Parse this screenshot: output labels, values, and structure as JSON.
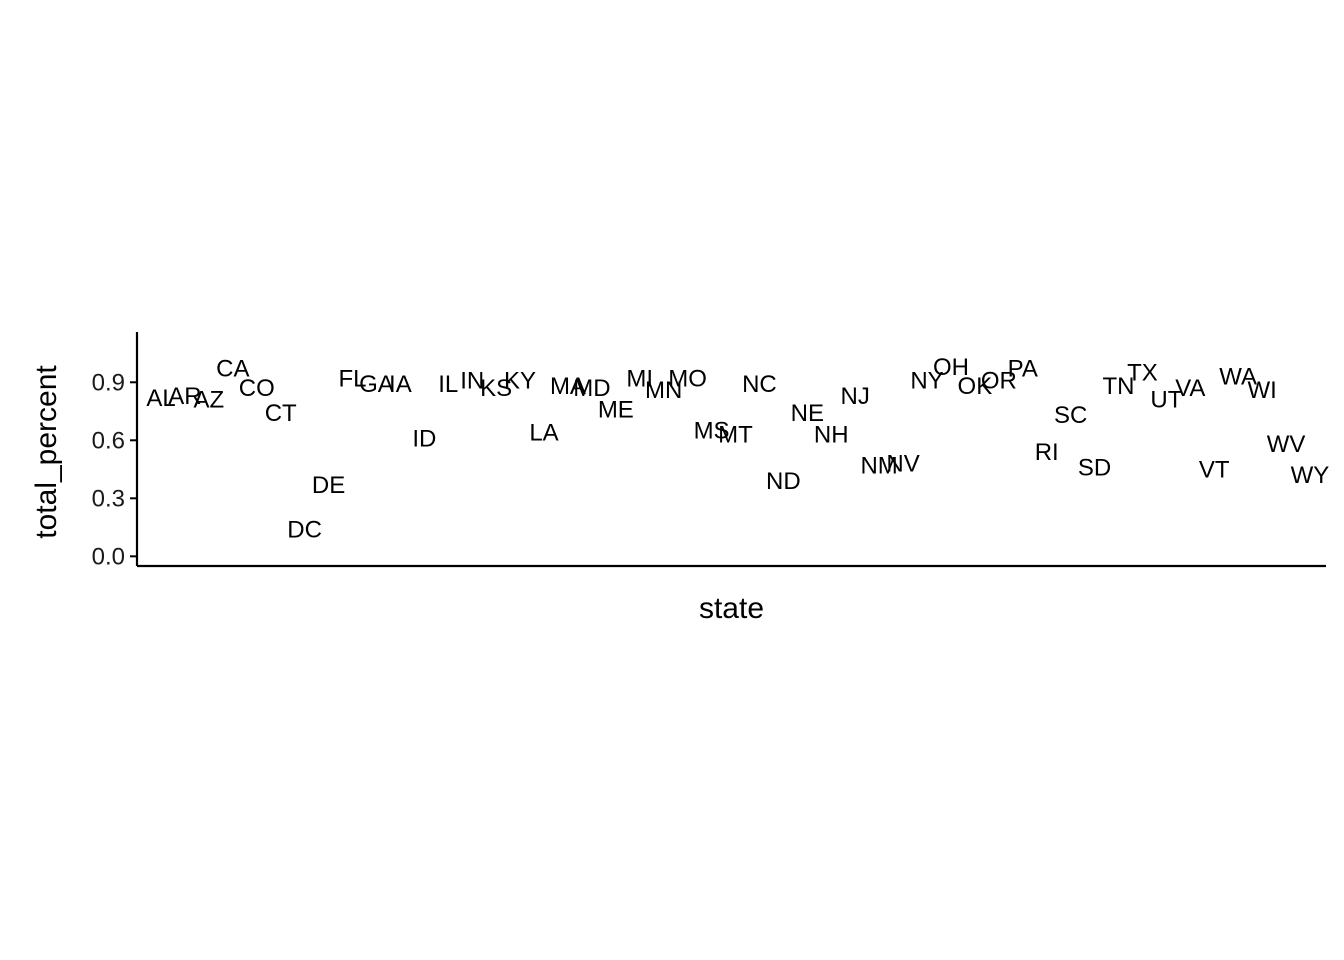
{
  "chart_data": {
    "type": "scatter",
    "xlabel": "state",
    "ylabel": "total_percent",
    "yticks": [
      0.0,
      0.3,
      0.6,
      0.9
    ],
    "ytick_labels": [
      "0.0",
      "0.3",
      "0.6",
      "0.9"
    ],
    "ylim": [
      -0.05,
      1.16
    ],
    "grid": false,
    "legend": "none",
    "points": [
      {
        "x": "AL",
        "y": 0.82
      },
      {
        "x": "AR",
        "y": 0.83
      },
      {
        "x": "AZ",
        "y": 0.81
      },
      {
        "x": "CA",
        "y": 0.97
      },
      {
        "x": "CO",
        "y": 0.87
      },
      {
        "x": "CT",
        "y": 0.74
      },
      {
        "x": "DC",
        "y": 0.14
      },
      {
        "x": "DE",
        "y": 0.37
      },
      {
        "x": "FL",
        "y": 0.92
      },
      {
        "x": "GA",
        "y": 0.89
      },
      {
        "x": "IA",
        "y": 0.89
      },
      {
        "x": "ID",
        "y": 0.61
      },
      {
        "x": "IL",
        "y": 0.89
      },
      {
        "x": "IN",
        "y": 0.91
      },
      {
        "x": "KS",
        "y": 0.87
      },
      {
        "x": "KY",
        "y": 0.91
      },
      {
        "x": "LA",
        "y": 0.64
      },
      {
        "x": "MA",
        "y": 0.88
      },
      {
        "x": "MD",
        "y": 0.87
      },
      {
        "x": "ME",
        "y": 0.76
      },
      {
        "x": "MI",
        "y": 0.92
      },
      {
        "x": "MN",
        "y": 0.86
      },
      {
        "x": "MO",
        "y": 0.92
      },
      {
        "x": "MS",
        "y": 0.65
      },
      {
        "x": "MT",
        "y": 0.63
      },
      {
        "x": "NC",
        "y": 0.89
      },
      {
        "x": "ND",
        "y": 0.39
      },
      {
        "x": "NE",
        "y": 0.74
      },
      {
        "x": "NH",
        "y": 0.63
      },
      {
        "x": "NJ",
        "y": 0.83
      },
      {
        "x": "NM",
        "y": 0.47
      },
      {
        "x": "NV",
        "y": 0.48
      },
      {
        "x": "NY",
        "y": 0.91
      },
      {
        "x": "OH",
        "y": 0.98
      },
      {
        "x": "OK",
        "y": 0.88
      },
      {
        "x": "OR",
        "y": 0.91
      },
      {
        "x": "PA",
        "y": 0.97
      },
      {
        "x": "RI",
        "y": 0.54
      },
      {
        "x": "SC",
        "y": 0.73
      },
      {
        "x": "SD",
        "y": 0.46
      },
      {
        "x": "TN",
        "y": 0.88
      },
      {
        "x": "TX",
        "y": 0.95
      },
      {
        "x": "UT",
        "y": 0.81
      },
      {
        "x": "VA",
        "y": 0.87
      },
      {
        "x": "VT",
        "y": 0.45
      },
      {
        "x": "WA",
        "y": 0.93
      },
      {
        "x": "WI",
        "y": 0.86
      },
      {
        "x": "WV",
        "y": 0.58
      },
      {
        "x": "WY",
        "y": 0.42
      }
    ]
  }
}
